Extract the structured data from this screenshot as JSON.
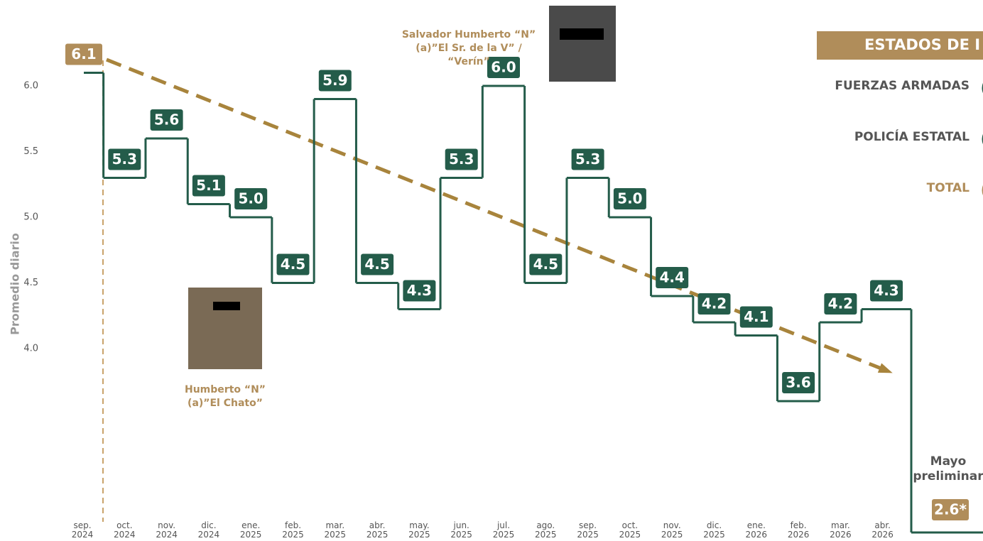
{
  "chart_data": {
    "type": "step",
    "y_label": "Promedio diario",
    "categories": [
      "sep. 2024",
      "oct. 2024",
      "nov. 2024",
      "dic. 2024",
      "ene. 2025",
      "feb. 2025",
      "mar. 2025",
      "abr. 2025",
      "may. 2025",
      "jun. 2025",
      "jul. 2025",
      "ago. 2025",
      "sep. 2025",
      "oct. 2025",
      "nov. 2025",
      "dic. 2025",
      "ene. 2026",
      "feb. 2026",
      "mar. 2026",
      "abr. 2026",
      "Mayo preliminar"
    ],
    "values": [
      6.1,
      5.3,
      5.6,
      5.1,
      5.0,
      4.5,
      5.9,
      4.5,
      4.3,
      5.3,
      6.0,
      4.5,
      5.3,
      5.0,
      4.4,
      4.2,
      4.1,
      3.6,
      4.2,
      4.3,
      2.6
    ],
    "value_labels": [
      "6.1",
      "5.3",
      "5.6",
      "5.1",
      "5.0",
      "4.5",
      "5.9",
      "4.5",
      "4.3",
      "5.3",
      "6.0",
      "4.5",
      "5.3",
      "5.0",
      "4.4",
      "4.2",
      "4.1",
      "3.6",
      "4.2",
      "4.3",
      "2.6*"
    ],
    "color": "#245c4a",
    "accent_color": "#b08d5a",
    "trend": {
      "start": 6.2,
      "end": 3.85,
      "color": "#a8843c"
    },
    "ylim": [
      2.6,
      6.6
    ],
    "yticks": [
      {
        "value": 4,
        "label": "4.0"
      },
      4.5,
      {
        "value": 5,
        "label": "5.0"
      },
      5.5,
      {
        "value": 6,
        "label": "6.0"
      }
    ],
    "annotations": [
      {
        "name": "Salvador Humberto “N”",
        "alias": "(a)”El Sr. de la V” / “Verín”"
      },
      {
        "name": "Humberto “N”",
        "alias": "(a)”El Chato”"
      }
    ],
    "legend": {
      "title": "ESTADOS DE I",
      "items": [
        "FUERZAS ARMADAS",
        "POLICÍA ESTATAL",
        "TOTAL"
      ]
    }
  }
}
